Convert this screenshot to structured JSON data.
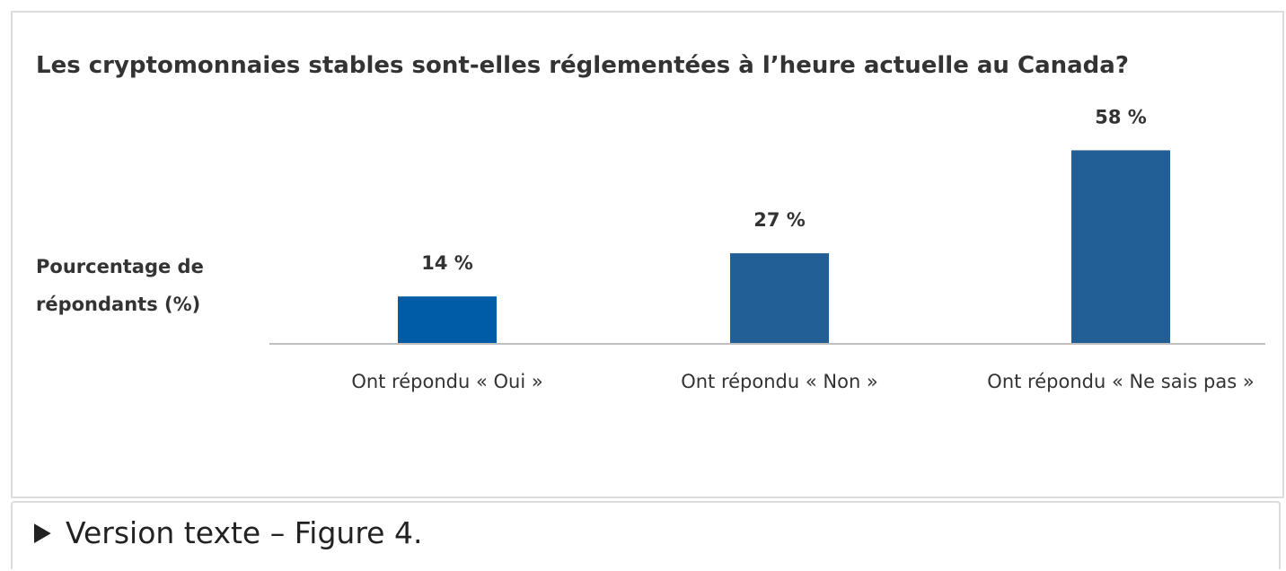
{
  "chart_data": {
    "type": "bar",
    "title": "Les cryptomonnaies stables sont-elles réglementées à l’heure actuelle au Canada?",
    "y_label": "Pourcentage de répondants (%)",
    "categories": [
      "Ont répondu « Oui »",
      "Ont répondu « Non »",
      "Ont répondu « Ne sais pas »"
    ],
    "values": [
      14,
      27,
      58
    ],
    "value_labels": [
      "14 %",
      "27 %",
      "58 %"
    ],
    "colors": [
      "#005ca6",
      "#215f96",
      "#215f96"
    ]
  },
  "details": {
    "summary": "Version texte – Figure 4."
  }
}
